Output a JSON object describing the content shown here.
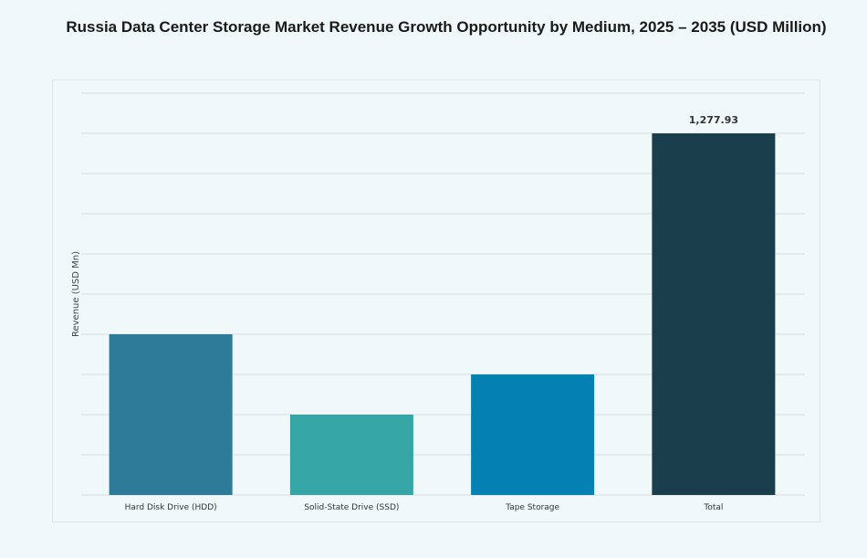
{
  "chart_data": {
    "type": "bar",
    "title": "Russia Data Center Storage Market Revenue Growth Opportunity by Medium, 2025 – 2035 (USD Million)",
    "xlabel": "",
    "ylabel": "Revenue (USD Mn)",
    "categories": [
      "Hard Disk Drive (HDD)",
      "Solid-State Drive (SSD)",
      "Tape Storage",
      "Total"
    ],
    "values": [
      568,
      284,
      426,
      1277.93
    ],
    "data_labels": [
      "",
      "",
      "",
      "1,277.93"
    ],
    "colors": [
      "#2e7a99",
      "#35a5a5",
      "#0580b3",
      "#1a3e4c"
    ],
    "ylim": [
      0,
      1420
    ],
    "grid": true,
    "legend": "none"
  }
}
